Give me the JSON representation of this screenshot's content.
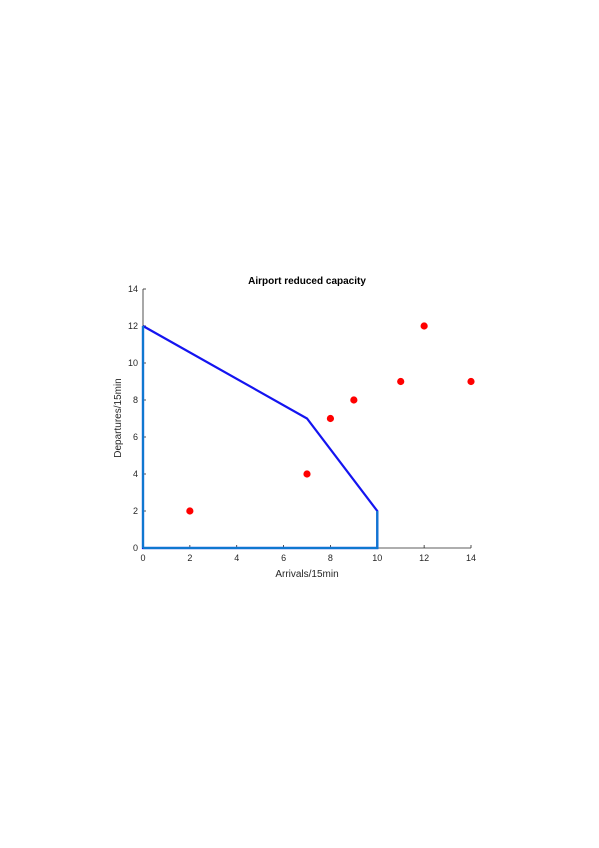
{
  "chart_data": {
    "type": "scatter",
    "title": "Airport reduced capacity",
    "xlabel": "Arrivals/15min",
    "ylabel": "Departures/15min",
    "xlim": [
      0,
      14
    ],
    "ylim": [
      0,
      14
    ],
    "xticks": [
      0,
      2,
      4,
      6,
      8,
      10,
      12,
      14
    ],
    "yticks": [
      0,
      2,
      4,
      6,
      8,
      10,
      12,
      14
    ],
    "xtick_labels": [
      "0",
      "2",
      "4",
      "6",
      "8",
      "10",
      "12",
      "14"
    ],
    "ytick_labels": [
      "0",
      "2",
      "4",
      "6",
      "8",
      "10",
      "12",
      "14"
    ],
    "grid": false,
    "series": [
      {
        "type": "line",
        "color": "#1414f0",
        "x": [
          0,
          7,
          10,
          10,
          0,
          0
        ],
        "y": [
          12,
          7,
          2,
          0,
          0,
          12
        ]
      },
      {
        "type": "scatter",
        "color": "#ff0000",
        "x": [
          2,
          7,
          8,
          9,
          11,
          12,
          14
        ],
        "y": [
          2,
          4,
          7,
          8,
          9,
          12,
          9
        ]
      }
    ],
    "extra_segments": [
      {
        "color": "#0f78d0",
        "x": [
          0,
          10,
          10
        ],
        "y": [
          0,
          0,
          2
        ]
      },
      {
        "color": "#0f78d0",
        "x": [
          0,
          0
        ],
        "y": [
          0,
          12
        ]
      }
    ]
  }
}
